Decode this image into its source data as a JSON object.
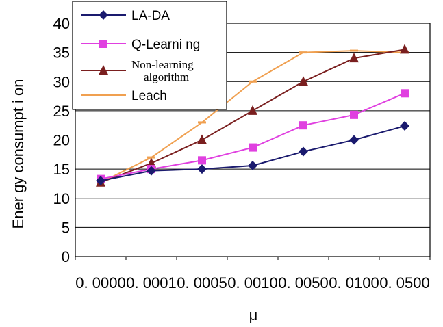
{
  "chart_data": {
    "type": "line",
    "title": "",
    "xlabel": "μ",
    "ylabel": "Ener gy consumpt i on",
    "categories": [
      "0. 0000",
      "0. 0001",
      "0. 0005",
      "0. 0010",
      "0. 0050",
      "0. 0100",
      "0. 0500"
    ],
    "ylim": [
      0,
      40
    ],
    "yticks": [
      "0",
      "5",
      "10",
      "15",
      "20",
      "25",
      "30",
      "35",
      "40"
    ],
    "grid": "horizontal",
    "legend_position": "top-left",
    "series": [
      {
        "name": "LA-DA",
        "color": "#1a1a6e",
        "marker": "diamond",
        "values": [
          13,
          14.7,
          15,
          15.6,
          18,
          20,
          22.4
        ]
      },
      {
        "name": "Q-Learni ng",
        "color": "#e040e0",
        "marker": "square",
        "values": [
          13.3,
          15,
          16.5,
          18.7,
          22.5,
          24.3,
          28
        ]
      },
      {
        "name": "Non-learning algorithm",
        "color": "#7a1f1f",
        "marker": "triangle",
        "values": [
          12.7,
          16,
          20,
          25,
          30,
          34,
          35.5
        ]
      },
      {
        "name": "Leach",
        "color": "#f0a050",
        "marker": "dash",
        "values": [
          12.7,
          17,
          23,
          30,
          35,
          35.3,
          35
        ]
      }
    ]
  }
}
